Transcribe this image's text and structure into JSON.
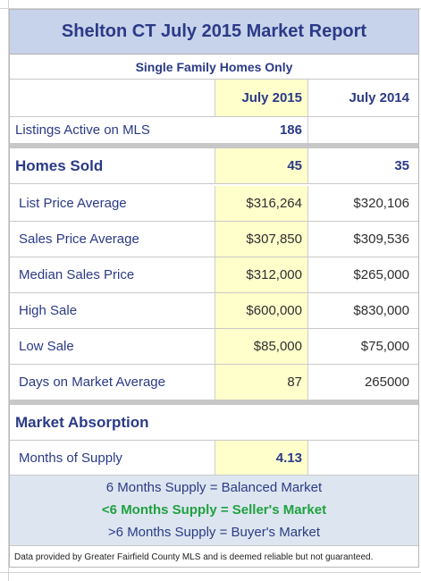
{
  "report": {
    "title": "Shelton CT July 2015 Market Report",
    "subtitle": "Single Family Homes Only",
    "col_current": "July 2015",
    "col_prior": "July 2014",
    "listings_label": "Listings Active on MLS",
    "listings_current": "186",
    "listings_prior": "",
    "homes_sold_label": "Homes Sold",
    "homes_sold_current": "45",
    "homes_sold_prior": "35",
    "metrics": [
      {
        "label": "List Price Average",
        "current": "$316,264",
        "prior": "$320,106"
      },
      {
        "label": "Sales Price Average",
        "current": "$307,850",
        "prior": "$309,536"
      },
      {
        "label": "Median Sales Price",
        "current": "$312,000",
        "prior": "$265,000"
      },
      {
        "label": "High Sale",
        "current": "$600,000",
        "prior": "$830,000"
      },
      {
        "label": "Low Sale",
        "current": "$85,000",
        "prior": "$75,000"
      },
      {
        "label": "Days on Market Average",
        "current": "87",
        "prior": "265000"
      }
    ],
    "absorption_label": "Market Absorption",
    "supply_label": "Months of Supply",
    "supply_value": "4.13",
    "supply_notes": [
      "6 Months Supply = Balanced Market",
      "<6 Months Supply = Seller's Market",
      ">6 Months Supply = Buyer's Market"
    ],
    "footer": "Data provided by Greater Fairfield County MLS and is deemed reliable but not guaranteed."
  },
  "colors": {
    "title_band": "#c7d3ea",
    "text_blue": "#2b3a87",
    "highlight_column": "#ffffcc",
    "seller_green": "#20a040",
    "supply_band": "#dde6f0"
  }
}
